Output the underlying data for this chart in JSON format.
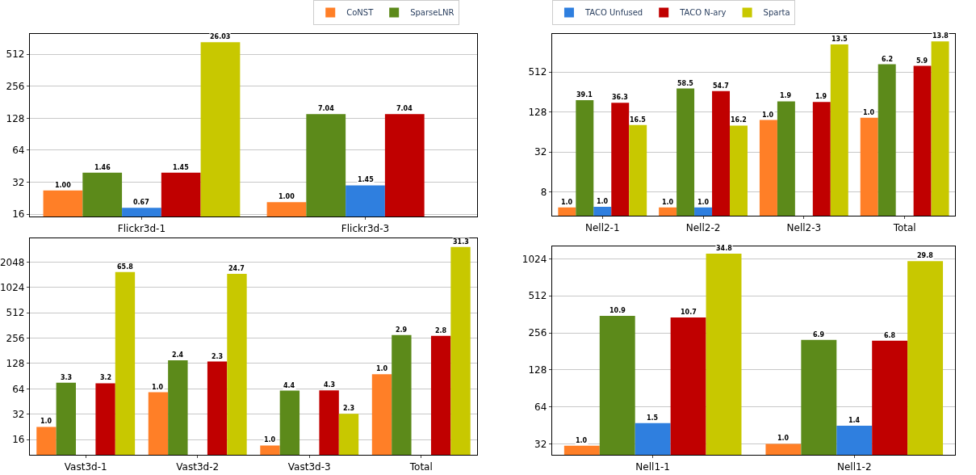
{
  "chart_data": [
    {
      "type": "bar",
      "categories": [
        "Flickr3d-1",
        "Flickr3d-3"
      ],
      "log": true,
      "ylim": [
        15.2,
        797
      ],
      "yticks": [
        16,
        32,
        64,
        128,
        256,
        512
      ],
      "grid": "y",
      "legend": "top",
      "series": [
        {
          "name": "CoNST",
          "color": "#ff7f27",
          "values": [
            26.8,
            20.8
          ]
        },
        {
          "name": "SparseLNR",
          "color": "#5c8a1a",
          "values": [
            39.3,
            140
          ]
        },
        {
          "color": "#2f7fdf",
          "values": [
            18.4,
            29.9
          ]
        },
        {
          "color": "#c00000",
          "values": [
            39.3,
            140
          ]
        },
        {
          "color": "#c8c800",
          "values": [
            662,
            null
          ]
        }
      ],
      "annotations": [
        "1.00",
        "1.46",
        "0.67",
        "1.45",
        "26.03",
        "1.00",
        "7.04",
        "1.45",
        "7.04"
      ]
    },
    {
      "type": "bar",
      "categories": [
        "Nell2-1",
        "Nell2-2",
        "Nell2-3",
        "Total"
      ],
      "log": true,
      "ylim": [
        3.5,
        1940
      ],
      "yticks": [
        8,
        32,
        128,
        512
      ],
      "grid": "y",
      "legend": "top",
      "series": [
        {
          "color": "#ff7f27",
          "values": [
            4.7,
            4.7,
            97,
            105
          ]
        },
        {
          "color": "#5c8a1a",
          "values": [
            193,
            290,
            186,
            671
          ]
        },
        {
          "name": "TACO Unfused",
          "color": "#2f7fdf",
          "values": [
            4.8,
            4.7,
            null,
            null
          ]
        },
        {
          "name": "TACO N-ary",
          "color": "#c00000",
          "values": [
            177,
            265,
            182,
            635
          ]
        },
        {
          "name": "Sparta",
          "color": "#c8c800",
          "values": [
            81.6,
            80,
            1333,
            1480
          ]
        }
      ],
      "annotations": [
        "1.0",
        "39.1",
        "1.0",
        "36.3",
        "16.5",
        "1.0",
        "58.5",
        "1.0",
        "54.7",
        "16.2",
        "1.0",
        "1.9",
        "1.9",
        "13.5",
        "1.0",
        "6.2",
        "5.9",
        "13.8"
      ]
    },
    {
      "type": "bar",
      "categories": [
        "Vast3d-1",
        "Vast3d-2",
        "Vast3d-3",
        "Total"
      ],
      "log": true,
      "ylim": [
        10.5,
        3930
      ],
      "yticks": [
        16,
        32,
        64,
        128,
        256,
        512,
        1024,
        2048
      ],
      "grid": "y",
      "series": [
        {
          "color": "#ff7f27",
          "values": [
            22.6,
            58.3,
            13.6,
            95.2
          ]
        },
        {
          "color": "#5c8a1a",
          "values": [
            75.7,
            140,
            61,
            279
          ]
        },
        {
          "color": "#2f7fdf",
          "values": [
            null,
            null,
            null,
            null
          ]
        },
        {
          "color": "#c00000",
          "values": [
            74.5,
            135,
            61.5,
            272
          ]
        },
        {
          "color": "#c8c800",
          "values": [
            1564,
            1489,
            32.3,
            3100
          ]
        }
      ],
      "annotations": [
        "1.0",
        "3.3",
        "3.2",
        "65.8",
        "1.0",
        "2.4",
        "2.3",
        "24.7",
        "1.0",
        "4.4",
        "4.3",
        "2.3",
        "1.0",
        "2.9",
        "2.8",
        "31.3"
      ]
    },
    {
      "type": "bar",
      "categories": [
        "Nell1-1",
        "Nell1-2"
      ],
      "log": true,
      "ylim": [
        26,
        1296
      ],
      "yticks": [
        32,
        64,
        128,
        256,
        512,
        1024
      ],
      "grid": "y",
      "series": [
        {
          "color": "#ff7f27",
          "values": [
            30.9,
            32
          ]
        },
        {
          "color": "#5c8a1a",
          "values": [
            352,
            224
          ]
        },
        {
          "color": "#2f7fdf",
          "values": [
            47.2,
            45
          ]
        },
        {
          "color": "#c00000",
          "values": [
            342,
            221
          ]
        },
        {
          "color": "#c8c800",
          "values": [
            1130,
            982
          ]
        }
      ],
      "annotations": [
        "1.0",
        "10.9",
        "1.5",
        "10.7",
        "34.8",
        "1.0",
        "6.9",
        "1.4",
        "6.8",
        "29.8"
      ]
    }
  ]
}
